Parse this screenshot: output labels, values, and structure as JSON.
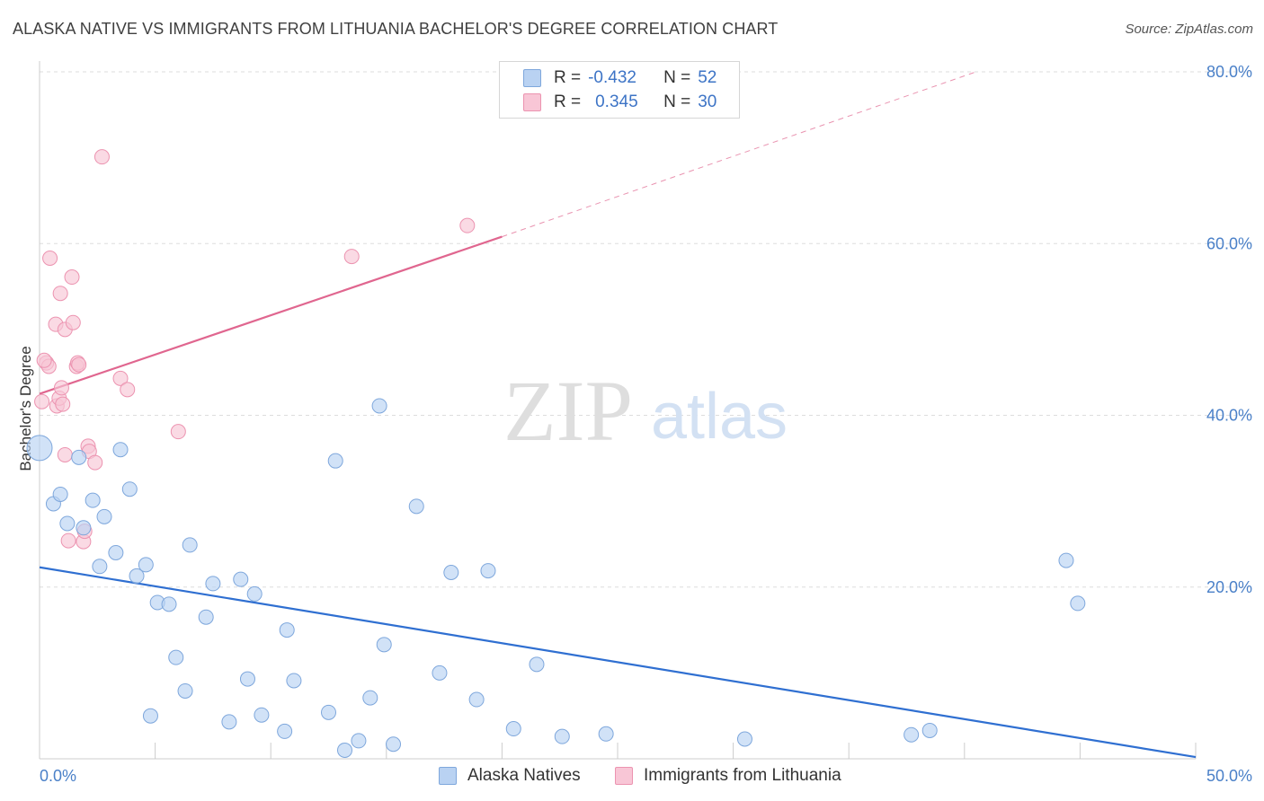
{
  "title": "ALASKA NATIVE VS IMMIGRANTS FROM LITHUANIA BACHELOR'S DEGREE CORRELATION CHART",
  "source": "Source: ZipAtlas.com",
  "watermark": {
    "zip": "ZIP",
    "atlas": "atlas"
  },
  "legend_top": {
    "rows": [
      {
        "r_label": "R =",
        "r_value": "-0.432",
        "n_label": "N =",
        "n_value": "52"
      },
      {
        "r_label": "R =",
        "r_value": "0.345",
        "n_label": "N =",
        "n_value": "30"
      }
    ]
  },
  "legend_bottom": {
    "series1": "Alaska Natives",
    "series2": "Immigrants from Lithuania"
  },
  "colors": {
    "blue_fill": "#b9d2f2",
    "blue_stroke": "#7ea7dc",
    "blue_line": "#2f6fd1",
    "pink_fill": "#f8c6d6",
    "pink_stroke": "#ec93b0",
    "pink_line": "#e0668f",
    "axis_text": "#4a80c8",
    "grid": "#dddddd"
  },
  "chart_data": {
    "type": "scatter",
    "title": "ALASKA NATIVE VS IMMIGRANTS FROM LITHUANIA BACHELOR'S DEGREE CORRELATION CHART",
    "xlabel": "",
    "ylabel": "Bachelor's Degree",
    "xlim": [
      0,
      50
    ],
    "ylim": [
      0,
      80
    ],
    "x_tick_labels": [
      {
        "value": 0,
        "label": "0.0%"
      },
      {
        "value": 50,
        "label": "50.0%"
      }
    ],
    "y_ticks": [
      {
        "value": 20,
        "label": "20.0%"
      },
      {
        "value": 40,
        "label": "40.0%"
      },
      {
        "value": 60,
        "label": "60.0%"
      },
      {
        "value": 80,
        "label": "80.0%"
      }
    ],
    "grid": "horizontal dashed",
    "legend_position": "top-center",
    "series": [
      {
        "name": "Alaska Natives",
        "r": -0.432,
        "n": 52,
        "trend": {
          "x0": 0,
          "y0": 22.3,
          "x1": 50,
          "y1": 0.2
        },
        "points": [
          [
            0.0,
            36.2
          ],
          [
            0.6,
            29.7
          ],
          [
            0.9,
            30.8
          ],
          [
            1.2,
            27.4
          ],
          [
            1.7,
            35.1
          ],
          [
            1.9,
            26.9
          ],
          [
            2.3,
            30.1
          ],
          [
            2.6,
            22.4
          ],
          [
            2.8,
            28.2
          ],
          [
            3.3,
            24.0
          ],
          [
            3.5,
            36.0
          ],
          [
            3.9,
            31.4
          ],
          [
            4.2,
            21.3
          ],
          [
            4.6,
            22.6
          ],
          [
            4.8,
            5.0
          ],
          [
            5.1,
            18.2
          ],
          [
            5.6,
            18.0
          ],
          [
            5.9,
            11.8
          ],
          [
            6.3,
            7.9
          ],
          [
            6.5,
            24.9
          ],
          [
            7.2,
            16.5
          ],
          [
            7.5,
            20.4
          ],
          [
            8.2,
            4.3
          ],
          [
            8.7,
            20.9
          ],
          [
            9.0,
            9.3
          ],
          [
            9.3,
            19.2
          ],
          [
            9.6,
            5.1
          ],
          [
            10.6,
            3.2
          ],
          [
            10.7,
            15.0
          ],
          [
            11.0,
            9.1
          ],
          [
            12.5,
            5.4
          ],
          [
            12.8,
            34.7
          ],
          [
            13.2,
            1.0
          ],
          [
            13.8,
            2.1
          ],
          [
            14.3,
            7.1
          ],
          [
            14.7,
            41.1
          ],
          [
            14.9,
            13.3
          ],
          [
            15.3,
            1.7
          ],
          [
            16.3,
            29.4
          ],
          [
            17.3,
            10.0
          ],
          [
            17.8,
            21.7
          ],
          [
            18.9,
            6.9
          ],
          [
            19.4,
            21.9
          ],
          [
            20.5,
            3.5
          ],
          [
            21.5,
            11.0
          ],
          [
            22.6,
            2.6
          ],
          [
            24.5,
            2.9
          ],
          [
            30.5,
            2.3
          ],
          [
            37.7,
            2.8
          ],
          [
            38.5,
            3.3
          ],
          [
            44.4,
            23.1
          ],
          [
            44.9,
            18.1
          ]
        ]
      },
      {
        "name": "Immigrants from Lithuania",
        "r": 0.345,
        "n": 30,
        "trend": {
          "x0": 0,
          "y0": 42.5,
          "x1": 20.0,
          "y1": 60.8
        },
        "trend_extension": {
          "x0": 20.0,
          "y0": 60.8,
          "x1": 40.5,
          "y1": 80.0
        },
        "points": [
          [
            0.1,
            41.6
          ],
          [
            0.3,
            46.1
          ],
          [
            0.4,
            45.7
          ],
          [
            0.45,
            58.3
          ],
          [
            0.7,
            50.6
          ],
          [
            0.75,
            41.1
          ],
          [
            0.85,
            42.0
          ],
          [
            0.9,
            54.2
          ],
          [
            0.95,
            43.2
          ],
          [
            1.1,
            35.4
          ],
          [
            1.1,
            50.0
          ],
          [
            1.25,
            25.4
          ],
          [
            1.4,
            56.1
          ],
          [
            1.45,
            50.8
          ],
          [
            1.6,
            45.7
          ],
          [
            1.65,
            46.1
          ],
          [
            1.7,
            45.9
          ],
          [
            1.9,
            25.3
          ],
          [
            1.95,
            26.5
          ],
          [
            2.1,
            36.4
          ],
          [
            2.15,
            35.8
          ],
          [
            2.4,
            34.5
          ],
          [
            2.7,
            70.1
          ],
          [
            3.5,
            44.3
          ],
          [
            3.8,
            43.0
          ],
          [
            6.0,
            38.1
          ],
          [
            13.5,
            58.5
          ],
          [
            18.5,
            62.1
          ],
          [
            0.2,
            46.4
          ],
          [
            1.0,
            41.3
          ]
        ]
      }
    ]
  }
}
